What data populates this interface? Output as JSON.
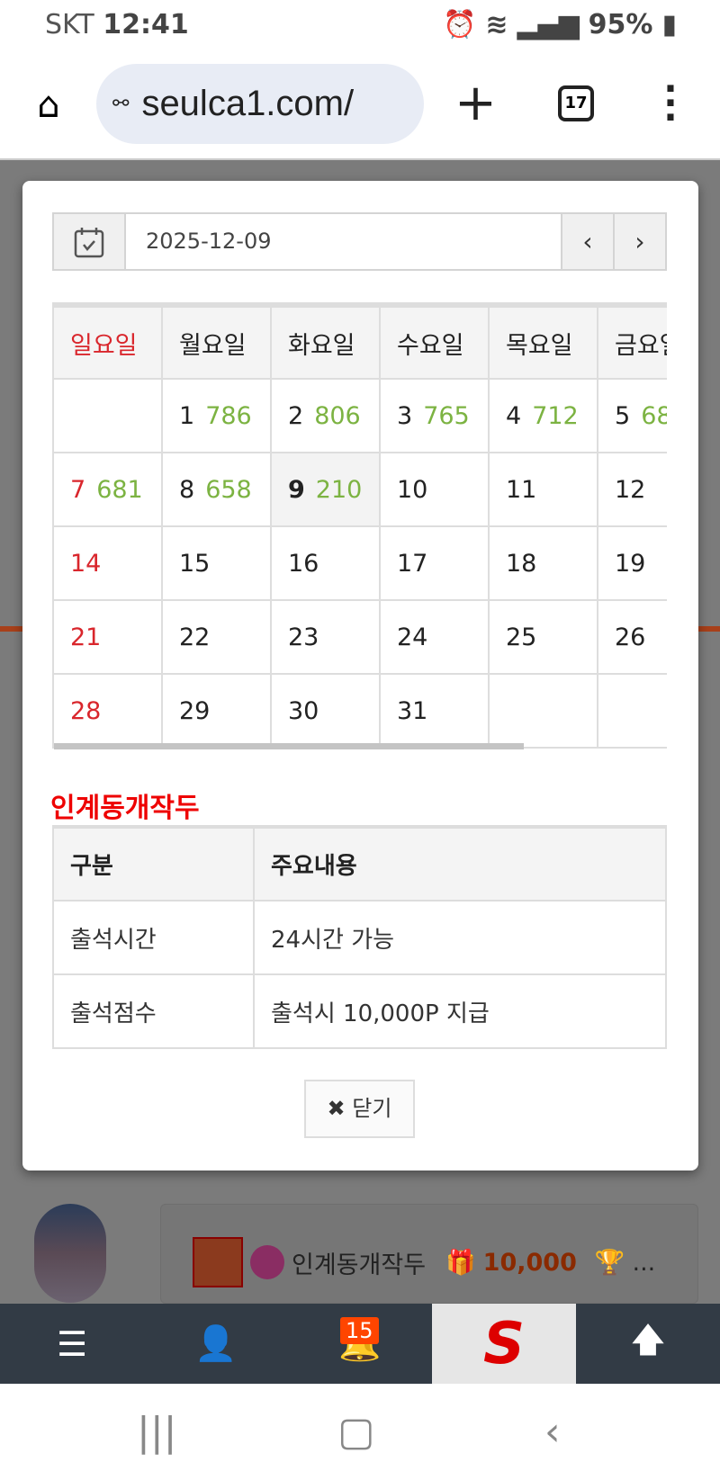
{
  "status": {
    "carrier": "SKT",
    "time": "12:41",
    "battery": "95%"
  },
  "browser": {
    "url": "seulca1.com/",
    "tab_count": "17"
  },
  "modal": {
    "date": "2025-12-09",
    "prev": "‹",
    "next": "›",
    "weekdays": [
      "일요일",
      "월요일",
      "화요일",
      "수요일",
      "목요일",
      "금요일"
    ],
    "weeks": [
      [
        {
          "d": "",
          "c": ""
        },
        {
          "d": "1",
          "c": "786"
        },
        {
          "d": "2",
          "c": "806"
        },
        {
          "d": "3",
          "c": "765"
        },
        {
          "d": "4",
          "c": "712"
        },
        {
          "d": "5",
          "c": "68"
        }
      ],
      [
        {
          "d": "7",
          "c": "681"
        },
        {
          "d": "8",
          "c": "658"
        },
        {
          "d": "9",
          "c": "210",
          "today": true
        },
        {
          "d": "10",
          "c": ""
        },
        {
          "d": "11",
          "c": ""
        },
        {
          "d": "12",
          "c": ""
        }
      ],
      [
        {
          "d": "14",
          "c": ""
        },
        {
          "d": "15",
          "c": ""
        },
        {
          "d": "16",
          "c": ""
        },
        {
          "d": "17",
          "c": ""
        },
        {
          "d": "18",
          "c": ""
        },
        {
          "d": "19",
          "c": ""
        }
      ],
      [
        {
          "d": "21",
          "c": ""
        },
        {
          "d": "22",
          "c": ""
        },
        {
          "d": "23",
          "c": ""
        },
        {
          "d": "24",
          "c": ""
        },
        {
          "d": "25",
          "c": ""
        },
        {
          "d": "26",
          "c": ""
        }
      ],
      [
        {
          "d": "28",
          "c": ""
        },
        {
          "d": "29",
          "c": ""
        },
        {
          "d": "30",
          "c": ""
        },
        {
          "d": "31",
          "c": ""
        },
        {
          "d": "",
          "c": ""
        },
        {
          "d": "",
          "c": ""
        }
      ]
    ],
    "section_title": "인계동개작두",
    "info": {
      "headers": [
        "구분",
        "주요내용"
      ],
      "rows": [
        [
          "출석시간",
          "24시간 가능"
        ],
        [
          "출석점수",
          "출석시 10,000P 지급"
        ]
      ]
    },
    "close_label": "닫기"
  },
  "behind": {
    "username": "인계동개작두",
    "points": "10,000",
    "more": "..."
  },
  "bottom_nav": {
    "notification_count": "15",
    "logo": "S"
  },
  "colors": {
    "sunday": "#d9262c",
    "count": "#7cb342",
    "title": "#e00000",
    "nav": "#323b45",
    "badge": "#ff4500"
  }
}
